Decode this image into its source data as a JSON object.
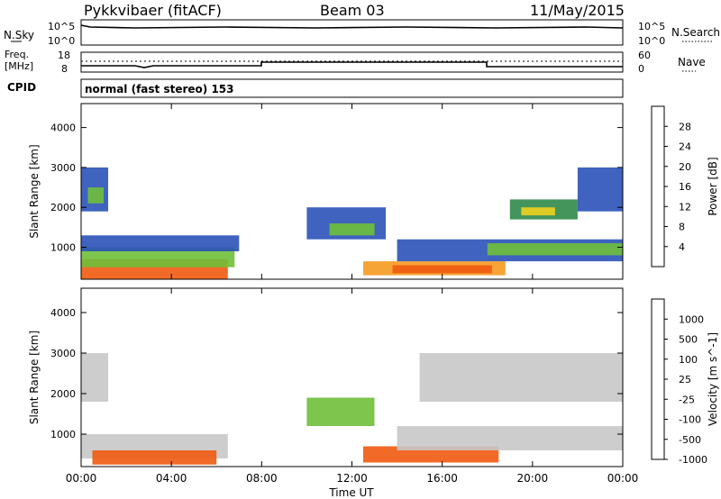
{
  "header": {
    "radar": "Pykkvibaer (fitACF)",
    "beam": "Beam 03",
    "date": "11/May/2015"
  },
  "top_panels": {
    "nsky_label": "N.Sky",
    "nsky_ticks": [
      "10^5",
      "10^0"
    ],
    "nsearch_label": "N.Search",
    "nsearch_ticks": [
      "10^5",
      "10^0"
    ],
    "freq_label_1": "Freq.",
    "freq_label_2": "[MHz]",
    "freq_ticks": [
      "18",
      "8"
    ],
    "nave_label": "Nave",
    "nave_ticks": [
      "60",
      "0"
    ],
    "cpid_label": "CPID",
    "cpid_text": "normal (fast stereo) 153"
  },
  "colors": {
    "power": [
      "#1f3cff",
      "#2a52b8",
      "#2f8a4a",
      "#6fbf3a",
      "#f0d020",
      "#f59a20",
      "#f05a10",
      "#e61010"
    ],
    "velocity": [
      "#e61010",
      "#f05a10",
      "#f59a20",
      "#c8c8c8",
      "#c8c8c8",
      "#6fbf3a",
      "#2f8a4a",
      "#1f3cff"
    ]
  },
  "chart_data": [
    {
      "type": "heatmap",
      "title": "",
      "ylabel": "Slant Range [km]",
      "xlabel": "",
      "ylim": [
        200,
        4600
      ],
      "x_ticks": [
        "00:00",
        "04:00",
        "08:00",
        "12:00",
        "16:00",
        "20:00",
        "00:00"
      ],
      "y_ticks": [
        1000,
        2000,
        3000,
        4000
      ],
      "colorbar": {
        "label": "Power [dB]",
        "ticks": [
          "4",
          "8",
          "12",
          "16",
          "20",
          "24",
          "28"
        ]
      },
      "regions": [
        {
          "t0": 0.0,
          "t1": 6.5,
          "r0": 200,
          "r1": 700,
          "level": 28
        },
        {
          "t0": 0.0,
          "t1": 6.8,
          "r0": 500,
          "r1": 1000,
          "level": 16
        },
        {
          "t0": 0.0,
          "t1": 7.0,
          "r0": 900,
          "r1": 1300,
          "level": 8
        },
        {
          "t0": 0.0,
          "t1": 1.2,
          "r0": 1900,
          "r1": 3000,
          "level": 8
        },
        {
          "t0": 0.3,
          "t1": 1.0,
          "r0": 2100,
          "r1": 2500,
          "level": 16
        },
        {
          "t0": 10.0,
          "t1": 13.5,
          "r0": 1200,
          "r1": 2000,
          "level": 8
        },
        {
          "t0": 11.0,
          "t1": 13.0,
          "r0": 1300,
          "r1": 1600,
          "level": 16
        },
        {
          "t0": 12.5,
          "t1": 18.8,
          "r0": 300,
          "r1": 650,
          "level": 24
        },
        {
          "t0": 13.8,
          "t1": 18.2,
          "r0": 350,
          "r1": 550,
          "level": 28
        },
        {
          "t0": 14.0,
          "t1": 24.0,
          "r0": 650,
          "r1": 1200,
          "level": 8
        },
        {
          "t0": 18.0,
          "t1": 24.0,
          "r0": 800,
          "r1": 1100,
          "level": 16
        },
        {
          "t0": 19.0,
          "t1": 22.0,
          "r0": 1700,
          "r1": 2200,
          "level": 12
        },
        {
          "t0": 19.5,
          "t1": 21.0,
          "r0": 1800,
          "r1": 2000,
          "level": 20
        },
        {
          "t0": 22.0,
          "t1": 24.0,
          "r0": 1900,
          "r1": 3000,
          "level": 8
        }
      ]
    },
    {
      "type": "heatmap",
      "title": "",
      "ylabel": "Slant Range [km]",
      "xlabel": "Time UT",
      "ylim": [
        200,
        4600
      ],
      "x_ticks": [
        "00:00",
        "04:00",
        "08:00",
        "12:00",
        "16:00",
        "20:00",
        "00:00"
      ],
      "y_ticks": [
        1000,
        2000,
        3000,
        4000
      ],
      "colorbar": {
        "label": "Velocity [m s^-1]",
        "ticks": [
          "1000",
          "500",
          "100",
          "25",
          "-25",
          "-100",
          "-500",
          "-1000"
        ]
      },
      "regions": [
        {
          "t0": 0.0,
          "t1": 1.2,
          "r0": 1800,
          "r1": 3000,
          "level": 0
        },
        {
          "t0": 0.0,
          "t1": 6.5,
          "r0": 400,
          "r1": 1000,
          "level": 0
        },
        {
          "t0": 0.5,
          "t1": 6.0,
          "r0": 250,
          "r1": 600,
          "level": -200
        },
        {
          "t0": 10.0,
          "t1": 13.0,
          "r0": 1200,
          "r1": 1900,
          "level": 100
        },
        {
          "t0": 12.5,
          "t1": 18.5,
          "r0": 300,
          "r1": 700,
          "level": -150
        },
        {
          "t0": 14.0,
          "t1": 24.0,
          "r0": 600,
          "r1": 1200,
          "level": 0
        },
        {
          "t0": 15.0,
          "t1": 24.0,
          "r0": 1800,
          "r1": 3000,
          "level": 0
        }
      ]
    }
  ]
}
